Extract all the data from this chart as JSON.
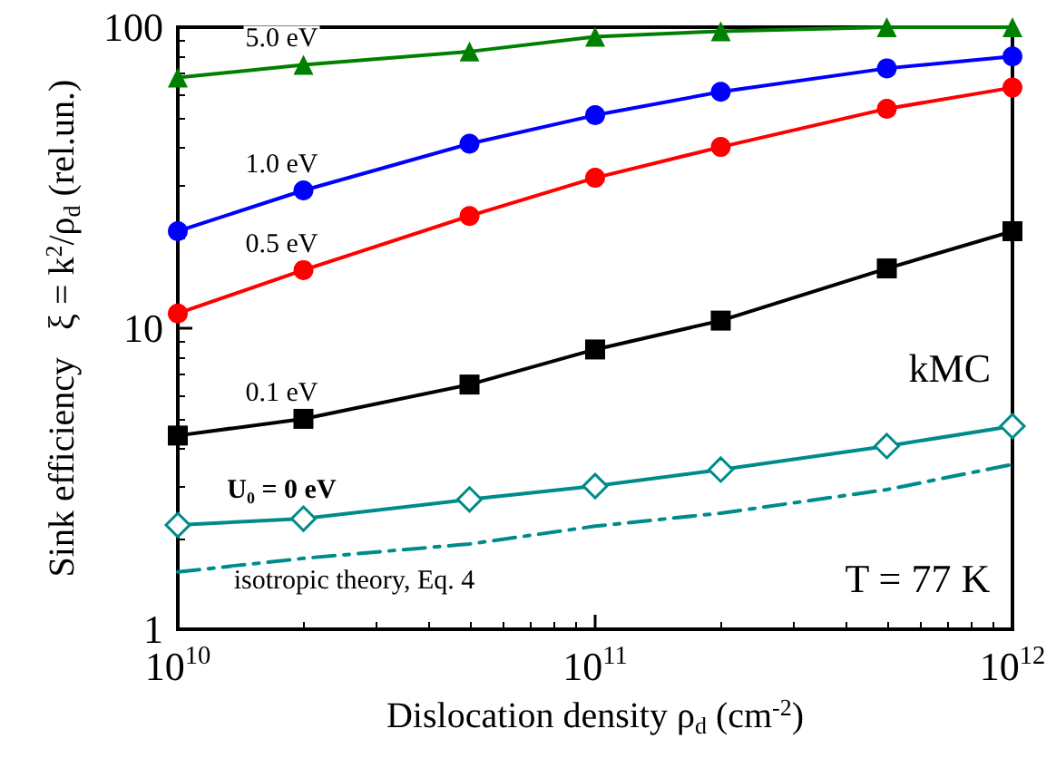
{
  "chart_data": {
    "type": "line",
    "xlabel": "Dislocation density ρ$_{d}$ (cm$^{-2}$)",
    "ylabel": "Sink efficiency   ξ = k$^{2}$/ρ$_{d}$ (rel.un.)",
    "x": [
      10000000000.0,
      20000000000.0,
      50000000000.0,
      100000000000.0,
      200000000000.0,
      500000000000.0,
      1000000000000.0
    ],
    "log": "xy",
    "xlim": [
      10000000000.0,
      1000000000000.0
    ],
    "xticks": [
      {
        "value": 10000000000.0,
        "label": "10$^{10}$"
      },
      {
        "value": 100000000000.0,
        "label": "10$^{11}$"
      },
      {
        "value": 1000000000000.0,
        "label": "10$^{12}$"
      }
    ],
    "ylim": [
      1,
      100
    ],
    "yticks": [
      1,
      10,
      100
    ],
    "grid": false,
    "legend": false,
    "series": [
      {
        "name": "5.0 eV",
        "color": "#008000",
        "marker": "triangle",
        "values": [
          68,
          75,
          83,
          93,
          97,
          100,
          100
        ]
      },
      {
        "name": "1.0 eV",
        "color": "#0000ff",
        "marker": "circle",
        "values": [
          21,
          28.7,
          41,
          51,
          61,
          73,
          80
        ]
      },
      {
        "name": "0.5 eV",
        "color": "#ff0000",
        "marker": "circle",
        "values": [
          11.2,
          15.6,
          23.6,
          31.6,
          40,
          53.6,
          63
        ]
      },
      {
        "name": "0.1 eV",
        "color": "#000000",
        "marker": "square",
        "values": [
          4.4,
          5.0,
          6.5,
          8.5,
          10.6,
          15.8,
          21
        ]
      },
      {
        "name": "U₀ = 0 eV",
        "color": "#008b8b",
        "marker": "diamond",
        "values": [
          2.22,
          2.33,
          2.7,
          2.99,
          3.39,
          4.06,
          4.73
        ]
      },
      {
        "name": "isotropic theory, Eq. 4",
        "color": "#008b8b",
        "marker": "none",
        "line_style": "dashed",
        "values": [
          1.55,
          1.72,
          1.92,
          2.2,
          2.43,
          2.91,
          3.53
        ]
      }
    ],
    "annotations": [
      "kMC",
      "T = 77 K"
    ]
  }
}
